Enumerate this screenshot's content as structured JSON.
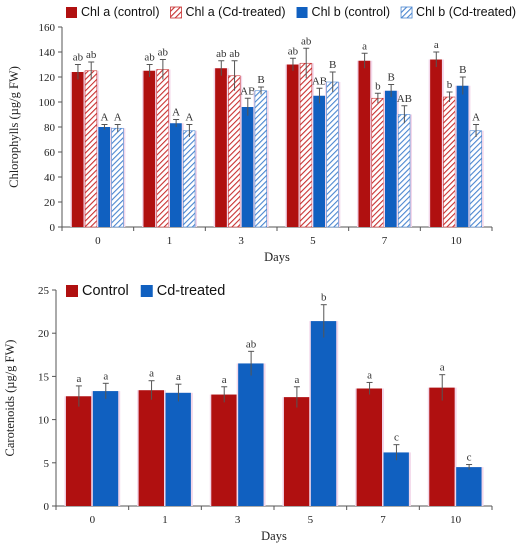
{
  "chart_data": [
    {
      "type": "bar",
      "xlabel": "Days",
      "ylabel": "Chlorophylls (µg/g FW)",
      "categories": [
        "0",
        "1",
        "3",
        "5",
        "7",
        "10"
      ],
      "ylim": [
        0,
        160
      ],
      "yticks": [
        0,
        20,
        40,
        60,
        80,
        100,
        120,
        140,
        160
      ],
      "legend_position": "top",
      "grid": false,
      "series": [
        {
          "name": "Chl a (control)",
          "color": "#b01010",
          "pattern": "solid",
          "values": [
            124,
            125,
            127,
            130,
            133,
            134
          ],
          "errors": [
            6,
            5,
            6,
            5,
            6,
            6
          ],
          "labels": [
            "ab",
            "ab",
            "ab",
            "ab",
            "a",
            "a"
          ]
        },
        {
          "name": "Chl a (Cd-treated)",
          "color": "#c83030",
          "pattern": "hatch",
          "values": [
            125,
            126,
            121,
            131,
            103,
            104
          ],
          "errors": [
            7,
            8,
            12,
            12,
            4,
            4
          ],
          "labels": [
            "ab",
            "ab",
            "ab",
            "ab",
            "b",
            "b"
          ]
        },
        {
          "name": "Chl b (control)",
          "color": "#1060c0",
          "pattern": "solid",
          "values": [
            80,
            83,
            96,
            105,
            109,
            113
          ],
          "errors": [
            2,
            3,
            7,
            6,
            5,
            7
          ],
          "labels": [
            "A",
            "A",
            "AB",
            "AB",
            "B",
            "B"
          ]
        },
        {
          "name": "Chl b (Cd-treated)",
          "color": "#4a86d0",
          "pattern": "hatch",
          "values": [
            79,
            77,
            109,
            116,
            90,
            77
          ],
          "errors": [
            3,
            5,
            3,
            8,
            7,
            5
          ],
          "labels": [
            "A",
            "A",
            "B",
            "B",
            "AB",
            "A"
          ]
        }
      ]
    },
    {
      "type": "bar",
      "xlabel": "Days",
      "ylabel": "Carotenoids (µg/g FW)",
      "categories": [
        "0",
        "1",
        "3",
        "5",
        "7",
        "10"
      ],
      "ylim": [
        0,
        25
      ],
      "yticks": [
        0,
        5,
        10,
        15,
        20,
        25
      ],
      "legend_position": "top",
      "grid": false,
      "series": [
        {
          "name": "Control",
          "color": "#b01010",
          "values": [
            12.7,
            13.4,
            12.9,
            12.6,
            13.6,
            13.7
          ],
          "errors": [
            1.2,
            1.1,
            0.9,
            1.2,
            0.7,
            1.5
          ],
          "labels": [
            "a",
            "a",
            "a",
            "a",
            "a",
            "a"
          ]
        },
        {
          "name": "Cd-treated",
          "color": "#1060c0",
          "values": [
            13.3,
            13.1,
            16.5,
            21.4,
            6.2,
            4.5
          ],
          "errors": [
            0.9,
            1.0,
            1.4,
            1.9,
            0.9,
            0.3
          ],
          "labels": [
            "a",
            "a",
            "ab",
            "b",
            "c",
            "c"
          ]
        }
      ]
    }
  ]
}
